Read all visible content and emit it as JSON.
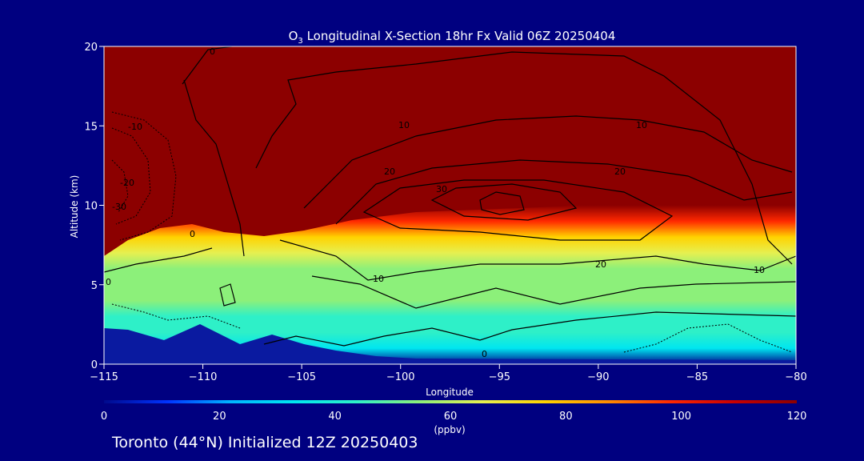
{
  "chart_data": {
    "type": "heatmap",
    "title_prefix": "O",
    "title_sub": "3",
    "title_rest": " Longitudinal X-Section 18hr  Fx Valid 06Z 20250404",
    "xlabel": "Longitude",
    "ylabel": "Altitude (km)",
    "xlim": [
      -115,
      -80
    ],
    "ylim": [
      0,
      20
    ],
    "x_ticks": [
      "−115",
      "−110",
      "−105",
      "−100",
      "−95",
      "−90",
      "−85",
      "−80"
    ],
    "x_tick_values": [
      -115,
      -110,
      -105,
      -100,
      -95,
      -90,
      -85,
      -80
    ],
    "y_ticks": [
      "0",
      "5",
      "10",
      "15",
      "20"
    ],
    "y_tick_values": [
      0,
      5,
      10,
      15,
      20
    ],
    "colorbar": {
      "ticks": [
        "0",
        "20",
        "40",
        "60",
        "80",
        "100",
        "120"
      ],
      "tick_values": [
        0,
        20,
        40,
        60,
        80,
        100,
        120
      ],
      "unit": "(ppbv)",
      "colors": [
        "#000a8c",
        "#0033ff",
        "#00b4ff",
        "#00e6f0",
        "#2ef0c8",
        "#8cf07a",
        "#e6f050",
        "#ffd200",
        "#ff8c00",
        "#ff2800",
        "#c80000",
        "#8c0000"
      ]
    },
    "field_profile": {
      "altitude_km": [
        0,
        1,
        2,
        3,
        4,
        5,
        6,
        7,
        8,
        9,
        10,
        11,
        20
      ],
      "value_ppbv": [
        5,
        35,
        45,
        48,
        50,
        52,
        55,
        60,
        75,
        95,
        115,
        120,
        120
      ]
    },
    "contour_labels": [
      "0",
      "-10",
      "-20",
      "-30",
      "10",
      "20",
      "30",
      "0",
      "10",
      "20",
      "10",
      "10",
      "20",
      "0",
      "0"
    ],
    "colors": {
      "background": "#000080",
      "stratosphere": "#8c0000",
      "ground": "#0a1aa0"
    }
  },
  "footer": "Toronto (44°N) Initialized 12Z 20250403"
}
